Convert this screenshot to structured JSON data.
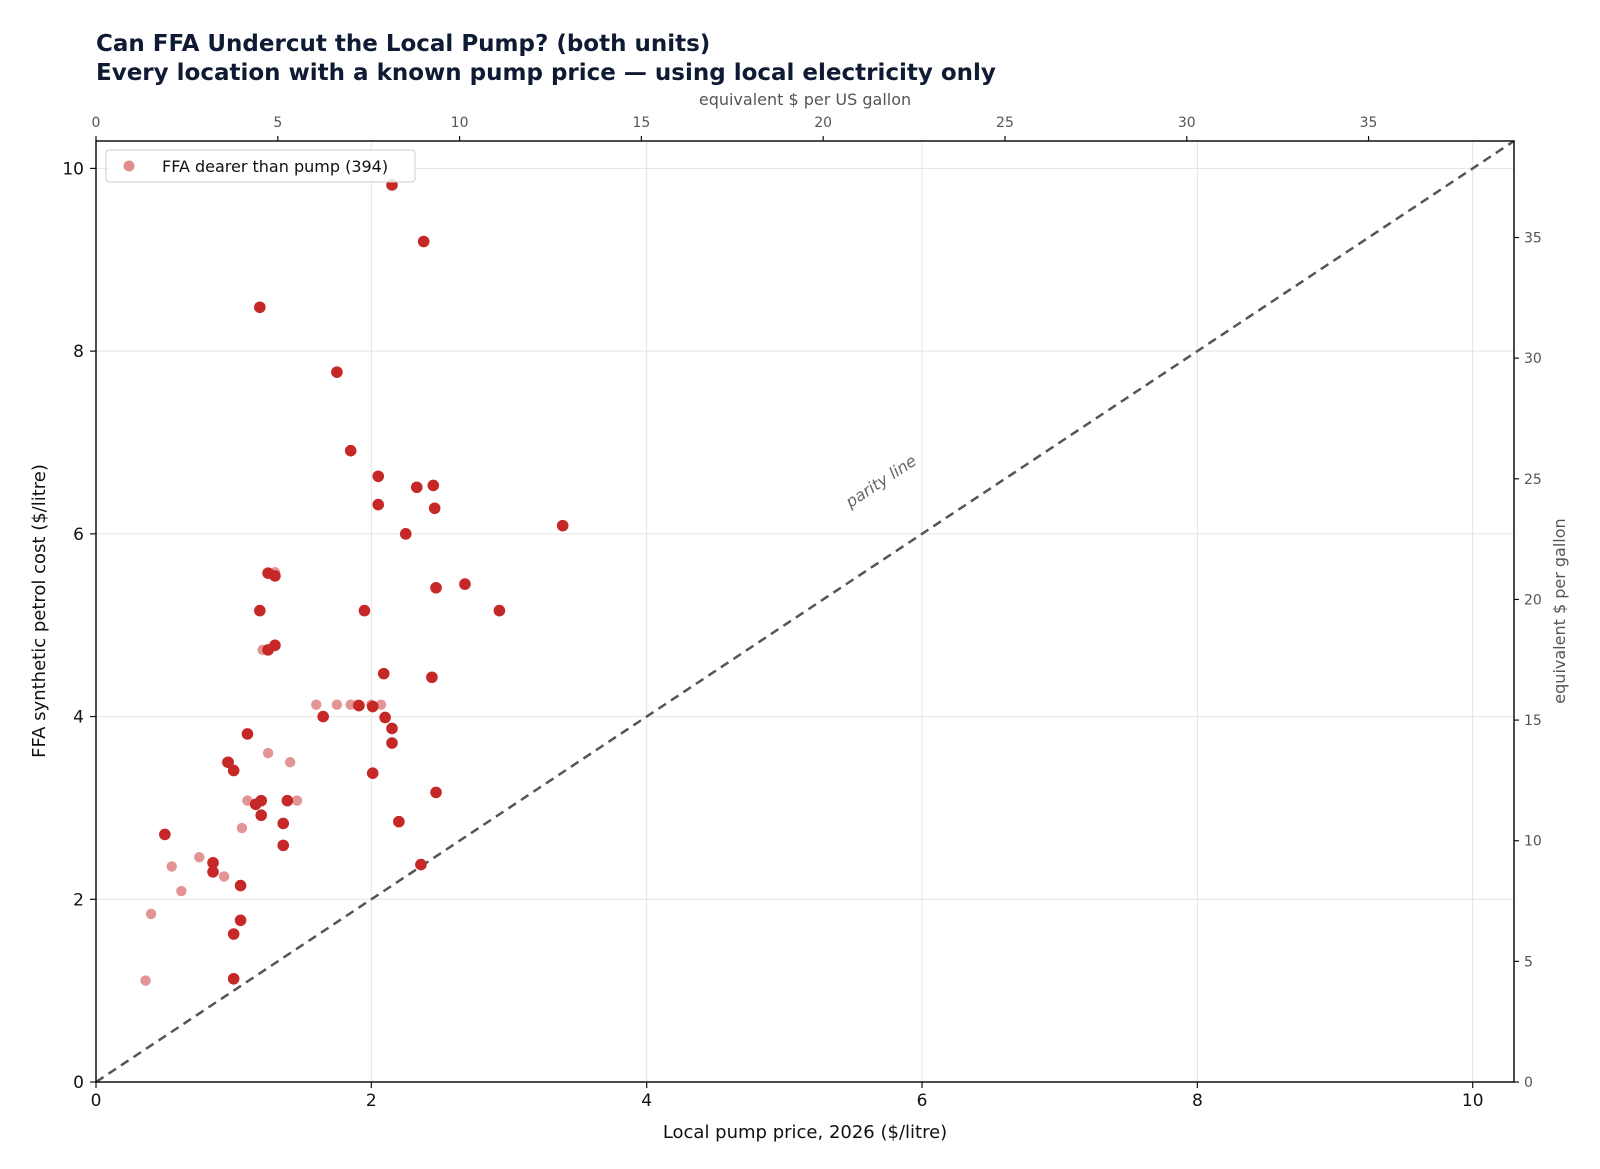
{
  "chart_data": {
    "type": "scatter",
    "title": "Can FFA Undercut the Local Pump? (both units)",
    "subtitle": "Every location with a known pump price — using local electricity only",
    "xlabel": "Local pump price, 2026 ($/litre)",
    "ylabel": "FFA synthetic petrol cost ($/litre)",
    "x2label": "equivalent $ per US gallon",
    "y2label": "equivalent $ per gallon",
    "xlim": [
      0,
      10.3
    ],
    "ylim": [
      0,
      10.3
    ],
    "x2lim": [
      0,
      39.0
    ],
    "y2lim": [
      0,
      39.0
    ],
    "xticks": [
      0,
      2,
      4,
      6,
      8,
      10
    ],
    "yticks": [
      0,
      2,
      4,
      6,
      8,
      10
    ],
    "x2ticks": [
      0,
      5,
      10,
      15,
      20,
      25,
      30,
      35
    ],
    "y2ticks": [
      0,
      5,
      10,
      15,
      20,
      25,
      30,
      35
    ],
    "grid": true,
    "legend_position": "top-left",
    "reference_line": {
      "label": "parity line",
      "from": [
        0,
        0
      ],
      "to": [
        10.3,
        10.3
      ],
      "color": "#555555",
      "style": "dashed"
    },
    "series": [
      {
        "name": "FFA dearer than pump (394)",
        "color": "#c62828",
        "points": [
          [
            2.15,
            9.82
          ],
          [
            2.38,
            9.2
          ],
          [
            1.19,
            8.48
          ],
          [
            1.75,
            7.77
          ],
          [
            1.85,
            6.91
          ],
          [
            2.05,
            6.63
          ],
          [
            2.05,
            6.32
          ],
          [
            2.33,
            6.51
          ],
          [
            2.45,
            6.53
          ],
          [
            2.46,
            6.28
          ],
          [
            2.25,
            6.0
          ],
          [
            3.39,
            6.09
          ],
          [
            1.25,
            5.57
          ],
          [
            1.3,
            5.54
          ],
          [
            2.47,
            5.41
          ],
          [
            2.68,
            5.45
          ],
          [
            1.19,
            5.16
          ],
          [
            1.95,
            5.16
          ],
          [
            2.93,
            5.16
          ],
          [
            1.3,
            4.78
          ],
          [
            1.25,
            4.73
          ],
          [
            2.09,
            4.47
          ],
          [
            2.44,
            4.43
          ],
          [
            1.65,
            4.0
          ],
          [
            2.01,
            4.11
          ],
          [
            1.91,
            4.12
          ],
          [
            2.1,
            3.99
          ],
          [
            2.15,
            3.87
          ],
          [
            2.15,
            3.71
          ],
          [
            1.1,
            3.81
          ],
          [
            1.0,
            3.41
          ],
          [
            2.01,
            3.38
          ],
          [
            2.47,
            3.17
          ],
          [
            1.2,
            3.08
          ],
          [
            1.16,
            3.04
          ],
          [
            1.39,
            3.08
          ],
          [
            1.2,
            2.92
          ],
          [
            1.36,
            2.83
          ],
          [
            2.2,
            2.85
          ],
          [
            1.36,
            2.59
          ],
          [
            0.5,
            2.71
          ],
          [
            0.85,
            2.4
          ],
          [
            0.85,
            2.3
          ],
          [
            1.05,
            2.15
          ],
          [
            1.05,
            1.77
          ],
          [
            1.0,
            1.62
          ],
          [
            2.36,
            2.38
          ],
          [
            1.0,
            1.13
          ],
          [
            0.96,
            3.5
          ]
        ]
      },
      {
        "name": "",
        "color": "#d97070",
        "points": [
          [
            1.3,
            5.58
          ],
          [
            1.21,
            4.73
          ],
          [
            1.6,
            4.13
          ],
          [
            1.75,
            4.13
          ],
          [
            1.85,
            4.13
          ],
          [
            1.9,
            4.13
          ],
          [
            2.0,
            4.13
          ],
          [
            2.07,
            4.13
          ],
          [
            1.25,
            3.6
          ],
          [
            1.41,
            3.5
          ],
          [
            0.95,
            3.5
          ],
          [
            1.1,
            3.08
          ],
          [
            1.46,
            3.08
          ],
          [
            1.06,
            2.78
          ],
          [
            0.75,
            2.46
          ],
          [
            0.55,
            2.36
          ],
          [
            0.93,
            2.25
          ],
          [
            0.62,
            2.09
          ],
          [
            0.4,
            1.84
          ],
          [
            0.36,
            1.11
          ]
        ]
      }
    ]
  }
}
